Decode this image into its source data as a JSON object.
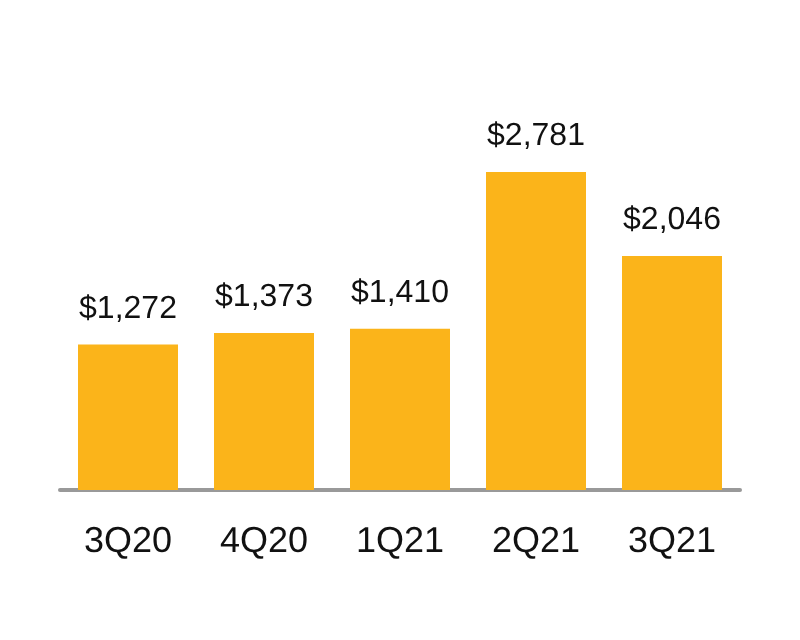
{
  "chart_data": {
    "type": "bar",
    "categories": [
      "3Q20",
      "4Q20",
      "1Q21",
      "2Q21",
      "3Q21"
    ],
    "values": [
      1272,
      1373,
      1410,
      2781,
      2046
    ],
    "value_labels": [
      "$1,272",
      "$1,373",
      "$1,410",
      "$2,781",
      "$2,046"
    ],
    "color": "#fbb41a"
  }
}
